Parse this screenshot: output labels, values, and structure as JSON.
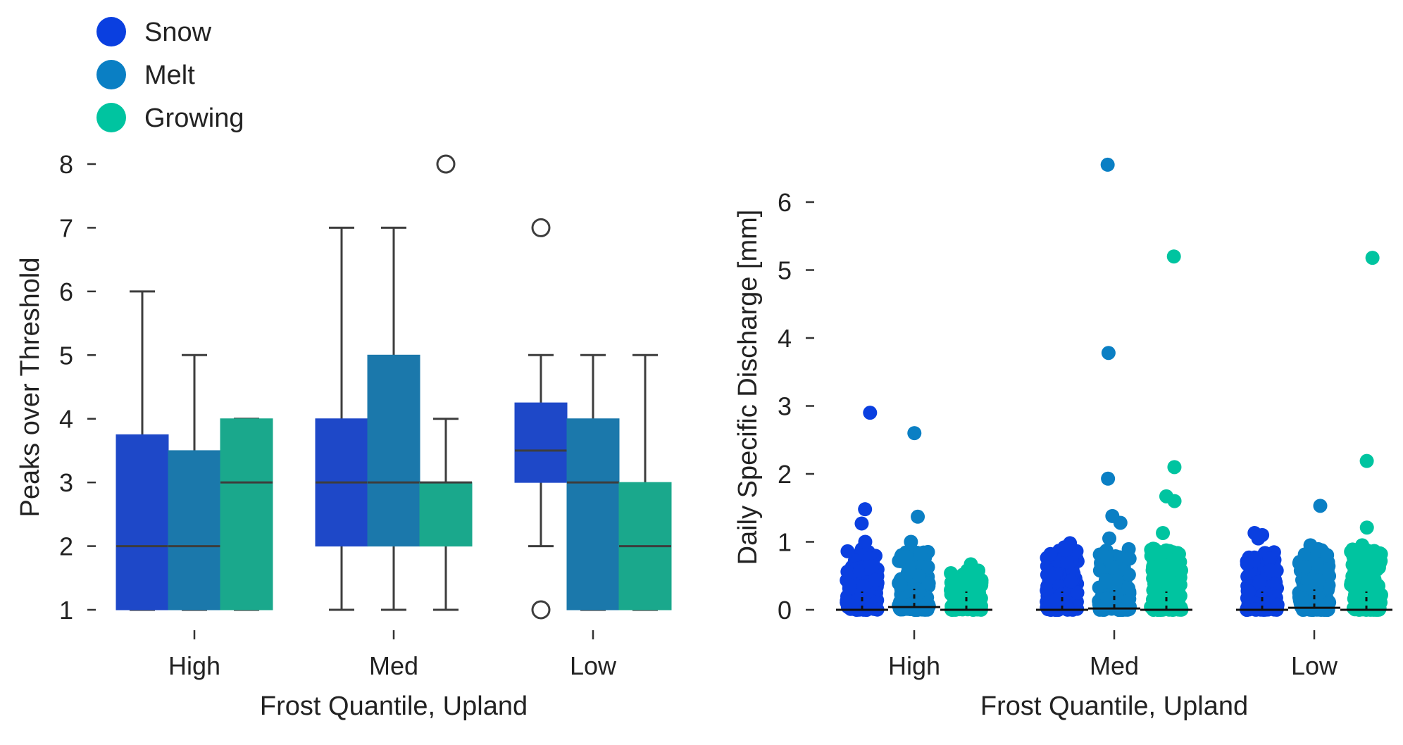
{
  "legend": {
    "placement": "top-left",
    "entries": [
      {
        "name": "Snow",
        "color": "#0a3fe0"
      },
      {
        "name": "Melt",
        "color": "#0a7fc4"
      },
      {
        "name": "Growing",
        "color": "#00c4a0"
      }
    ]
  },
  "chart_data": [
    {
      "type": "box",
      "xlabel": "Frost Quantile, Upland",
      "ylabel": "Peaks over Threshold",
      "ylim": [
        1,
        8
      ],
      "yticks": [
        1,
        2,
        3,
        4,
        5,
        6,
        7,
        8
      ],
      "categories": [
        "High",
        "Med",
        "Low"
      ],
      "grid": false,
      "series": [
        {
          "name": "Snow",
          "color": "#1e48c8",
          "boxes": [
            {
              "whisker_low": 1,
              "q1": 1,
              "median": 2,
              "q3": 3.75,
              "whisker_high": 6,
              "outliers": []
            },
            {
              "whisker_low": 1,
              "q1": 2,
              "median": 3,
              "q3": 4,
              "whisker_high": 7,
              "outliers": []
            },
            {
              "whisker_low": 2,
              "q1": 3,
              "median": 3.5,
              "q3": 4.25,
              "whisker_high": 5,
              "outliers": [
                7,
                1
              ]
            }
          ]
        },
        {
          "name": "Melt",
          "color": "#1b78ab",
          "boxes": [
            {
              "whisker_low": 1,
              "q1": 1,
              "median": 2,
              "q3": 3.5,
              "whisker_high": 5,
              "outliers": []
            },
            {
              "whisker_low": 1,
              "q1": 2,
              "median": 3,
              "q3": 5,
              "whisker_high": 7,
              "outliers": []
            },
            {
              "whisker_low": 1,
              "q1": 1,
              "median": 3,
              "q3": 4,
              "whisker_high": 5,
              "outliers": []
            }
          ]
        },
        {
          "name": "Growing",
          "color": "#1aa88c",
          "boxes": [
            {
              "whisker_low": 1,
              "q1": 1,
              "median": 3,
              "q3": 4,
              "whisker_high": 4,
              "outliers": []
            },
            {
              "whisker_low": 1,
              "q1": 2,
              "median": 3,
              "q3": 3,
              "whisker_high": 4,
              "outliers": [
                8
              ]
            },
            {
              "whisker_low": 1,
              "q1": 1,
              "median": 2,
              "q3": 3,
              "whisker_high": 5,
              "outliers": []
            }
          ]
        }
      ]
    },
    {
      "type": "strip",
      "xlabel": "Frost Quantile, Upland",
      "ylabel": "Daily Specific Discharge [mm]",
      "ylim": [
        0,
        6.5
      ],
      "yticks": [
        0,
        1,
        2,
        3,
        4,
        5,
        6
      ],
      "categories": [
        "High",
        "Med",
        "Low"
      ],
      "grid": false,
      "series": [
        {
          "name": "Snow",
          "color": "#0a3fe0",
          "groups": [
            {
              "median": 0.0,
              "notable_points": [
                2.9,
                1.48,
                1.27,
                1.0
              ]
            },
            {
              "median": 0.0,
              "notable_points": [
                0.98,
                0.92,
                0.88
              ]
            },
            {
              "median": 0.0,
              "notable_points": [
                1.13,
                1.1,
                1.05
              ]
            }
          ]
        },
        {
          "name": "Melt",
          "color": "#0a7fc4",
          "groups": [
            {
              "median": 0.04,
              "notable_points": [
                2.6,
                1.37,
                1.0
              ]
            },
            {
              "median": 0.02,
              "notable_points": [
                6.55,
                3.78,
                1.93,
                1.38,
                1.28,
                1.05
              ]
            },
            {
              "median": 0.03,
              "notable_points": [
                1.53,
                0.95
              ]
            }
          ]
        },
        {
          "name": "Growing",
          "color": "#00c4a0",
          "groups": [
            {
              "median": 0.0,
              "notable_points": [
                0.67,
                0.58
              ]
            },
            {
              "median": 0.0,
              "notable_points": [
                5.2,
                2.1,
                1.67,
                1.6,
                1.13
              ]
            },
            {
              "median": 0.0,
              "notable_points": [
                5.18,
                2.19,
                1.21,
                0.95
              ]
            }
          ]
        }
      ]
    }
  ]
}
